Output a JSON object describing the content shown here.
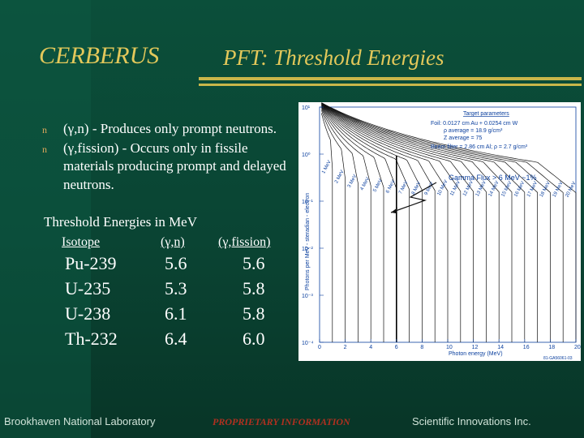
{
  "header": {
    "title": "CERBERUS",
    "subtitle": "PFT: Threshold Energies"
  },
  "bullets": [
    {
      "icon": "square-bullet-icon",
      "marker": "n",
      "text": "(γ,n) - Produces only prompt neutrons."
    },
    {
      "icon": "square-bullet-icon",
      "marker": "n",
      "text": "(γ,fission) - Occurs only in fissile materials producing prompt and delayed neutrons."
    }
  ],
  "threshold": {
    "heading": "Threshold Energies in MeV",
    "columns": [
      "Isotope",
      "(γ,n)",
      "(γ,fission)"
    ],
    "rows": [
      {
        "isotope": "Pu-239",
        "gn": "5.6",
        "gfission": "5.6"
      },
      {
        "isotope": "U-235",
        "gn": "5.3",
        "gfission": "5.8"
      },
      {
        "isotope": "U-238",
        "gn": "6.1",
        "gfission": "5.8"
      },
      {
        "isotope": "Th-232",
        "gn": "6.4",
        "gfission": "6.0"
      }
    ]
  },
  "plot": {
    "params_title": "Target parameters",
    "params": [
      "Foil:  0.0127 cm Au + 0.0254 cm W",
      "ρ average  =  18.9 g/cm³",
      "Z average  =  75",
      "Beam filter = 2.86 cm Al;  ρ = 2.7 g/cm³"
    ],
    "flux_note": "Gamma Flux > 6 MeV  ~1%",
    "xlabel": "Photon energy (MeV)",
    "ylabel": "Photons per MeV - steradian - electron",
    "xticks": [
      "0",
      "2",
      "4",
      "6",
      "8",
      "10",
      "12",
      "14",
      "16",
      "18",
      "20"
    ],
    "yticks": [
      "10¹",
      "10⁰",
      "10⁻¹",
      "10⁻²",
      "10⁻³",
      "10⁻⁴"
    ],
    "curve_labels": [
      "1 MeV",
      "2 MeV",
      "3 MeV",
      "4 MeV",
      "5 MeV",
      "6 MeV",
      "7 MeV",
      "8 MeV",
      "9 MeV",
      "10 MeV",
      "11 MeV",
      "12 MeV",
      "13 MeV",
      "14 MeV",
      "15 MeV",
      "16 MeV",
      "17 MeV",
      "18 MeV",
      "19 MeV",
      "20 MeV"
    ],
    "figure_id": "81-GA56061-03",
    "marker_energy_mev": 6,
    "colors": {
      "curve": "#111111",
      "text": "#0a3f9e",
      "arrow": "#111111"
    }
  },
  "footer": {
    "left": "Brookhaven National Laboratory",
    "middle": "PROPRIETARY INFORMATION",
    "right": "Scientific Innovations Inc."
  }
}
